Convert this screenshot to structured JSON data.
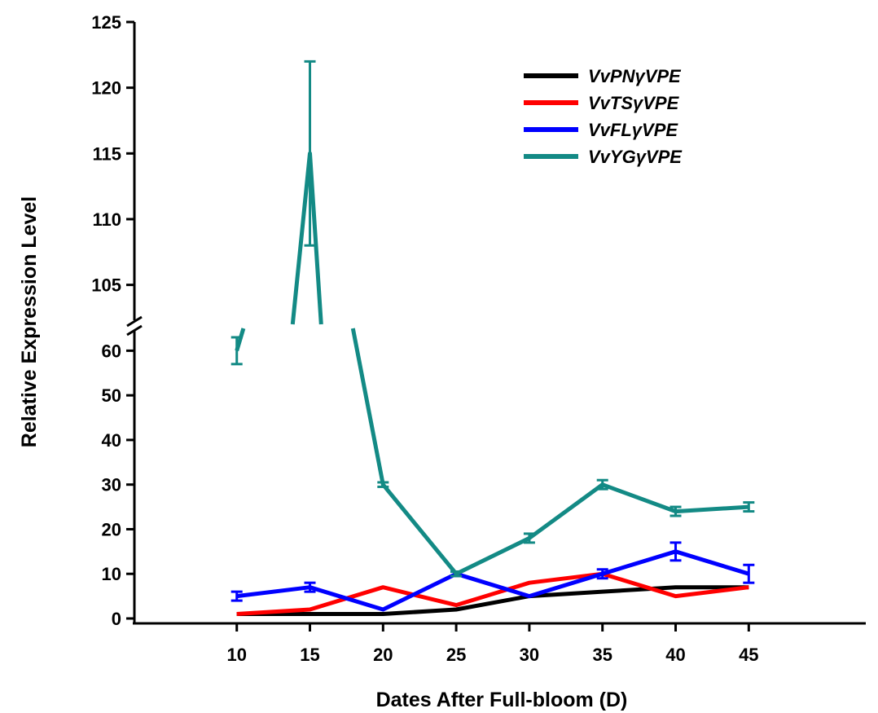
{
  "chart_data": {
    "type": "line",
    "xlabel": "Dates After Full-bloom (D)",
    "ylabel": "Relative Expression Level",
    "x": [
      10,
      15,
      20,
      25,
      30,
      35,
      40,
      45
    ],
    "xlim": [
      3,
      53
    ],
    "y_axis_break": {
      "lower_range": [
        0,
        65
      ],
      "upper_range": [
        102,
        125
      ],
      "lower_ticks": [
        0,
        10,
        20,
        30,
        40,
        50,
        60
      ],
      "upper_ticks": [
        105,
        110,
        115,
        120,
        125
      ]
    },
    "legend_position": "top-right",
    "series": [
      {
        "name": "VvPNγVPE",
        "color": "#000000",
        "values": [
          1,
          1,
          1,
          2,
          5,
          6,
          7,
          7
        ],
        "errors": [
          0,
          0,
          0,
          0,
          0,
          0,
          0,
          0
        ]
      },
      {
        "name": "VvTSγVPE",
        "color": "#ff0000",
        "values": [
          1,
          2,
          7,
          3,
          8,
          10,
          5,
          7
        ],
        "errors": [
          0,
          0,
          0,
          0,
          0,
          0,
          0,
          0
        ]
      },
      {
        "name": "VvFLγVPE",
        "color": "#0000ff",
        "values": [
          5,
          7,
          2,
          10,
          5,
          10,
          15,
          10
        ],
        "errors": [
          1,
          1,
          0,
          0.5,
          0,
          1,
          2,
          2
        ]
      },
      {
        "name": "VvYGγVPE",
        "color": "#138a85",
        "values": [
          60,
          115,
          30,
          10,
          18,
          30,
          24,
          25
        ],
        "errors": [
          3,
          7,
          0.5,
          0.5,
          1,
          1,
          1,
          1
        ]
      }
    ]
  }
}
